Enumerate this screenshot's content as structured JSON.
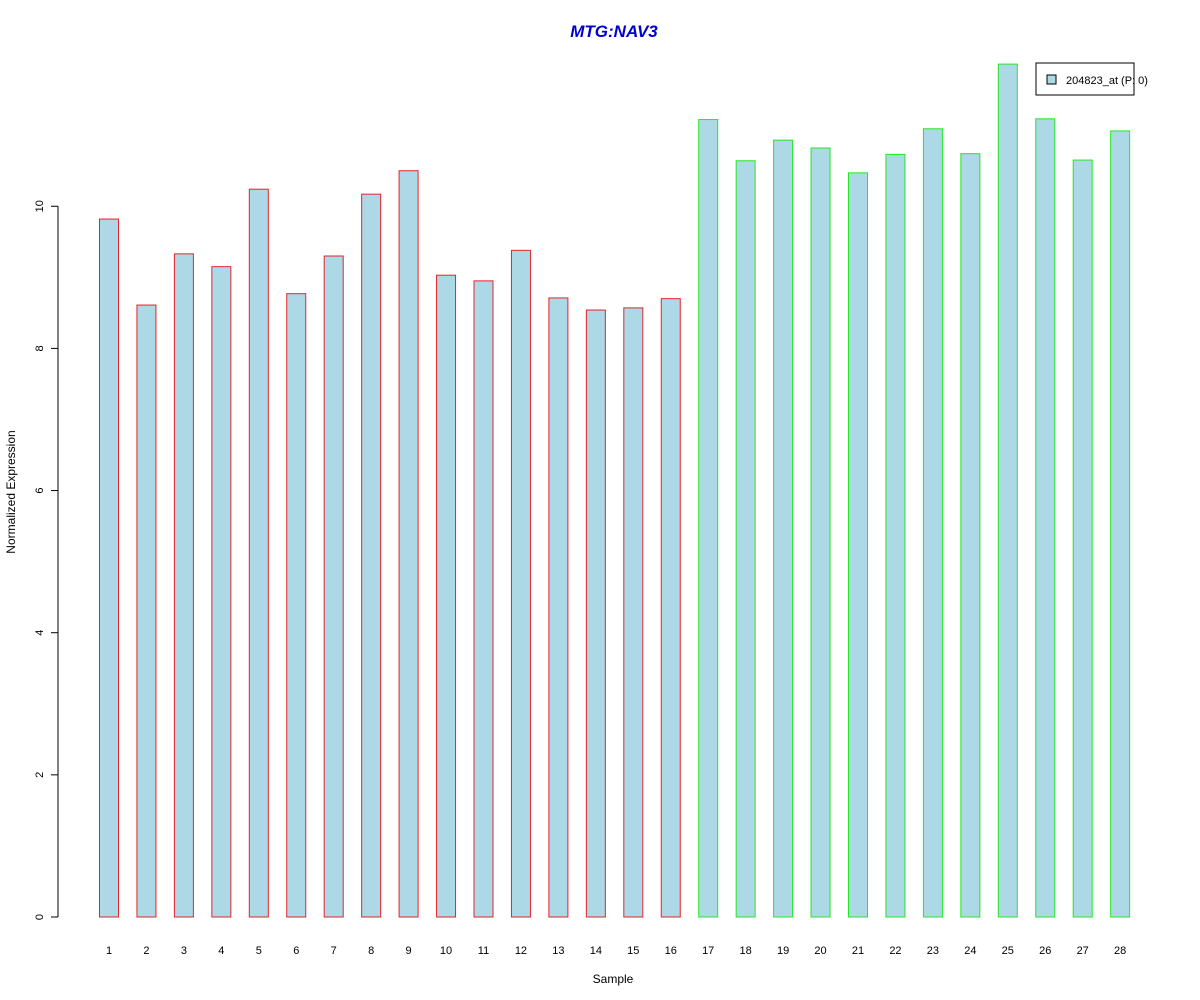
{
  "chart_data": {
    "type": "bar",
    "title": "MTG:NAV3",
    "xlabel": "Sample",
    "ylabel": "Normalized Expression",
    "ylim": [
      0,
      12.1
    ],
    "yticks": [
      0,
      2,
      4,
      6,
      8,
      10
    ],
    "categories": [
      "1",
      "2",
      "3",
      "4",
      "5",
      "6",
      "7",
      "8",
      "9",
      "10",
      "11",
      "12",
      "13",
      "14",
      "15",
      "16",
      "17",
      "18",
      "19",
      "20",
      "21",
      "22",
      "23",
      "24",
      "25",
      "26",
      "27",
      "28"
    ],
    "series": [
      {
        "name": "204823_at (P: 0)",
        "values": [
          9.82,
          8.61,
          9.33,
          9.15,
          10.24,
          8.77,
          9.3,
          10.17,
          10.5,
          9.03,
          8.95,
          9.38,
          8.71,
          8.54,
          8.57,
          8.7,
          11.22,
          10.64,
          10.93,
          10.82,
          10.47,
          10.73,
          11.09,
          10.74,
          12.0,
          11.23,
          10.65,
          11.06
        ]
      }
    ],
    "groups": [
      {
        "samples": [
          "1",
          "2",
          "3",
          "4",
          "5",
          "6",
          "7",
          "8",
          "9",
          "10",
          "11",
          "12",
          "13",
          "14",
          "15",
          "16"
        ],
        "border_color": "#e8222a"
      },
      {
        "samples": [
          "17",
          "18",
          "19",
          "20",
          "21",
          "22",
          "23",
          "24",
          "25",
          "26",
          "27",
          "28"
        ],
        "border_color": "#22e822"
      }
    ],
    "bar_fill": "#add8e6",
    "title_color": "#0000cd",
    "legend_position": "top-right",
    "grid": false
  }
}
